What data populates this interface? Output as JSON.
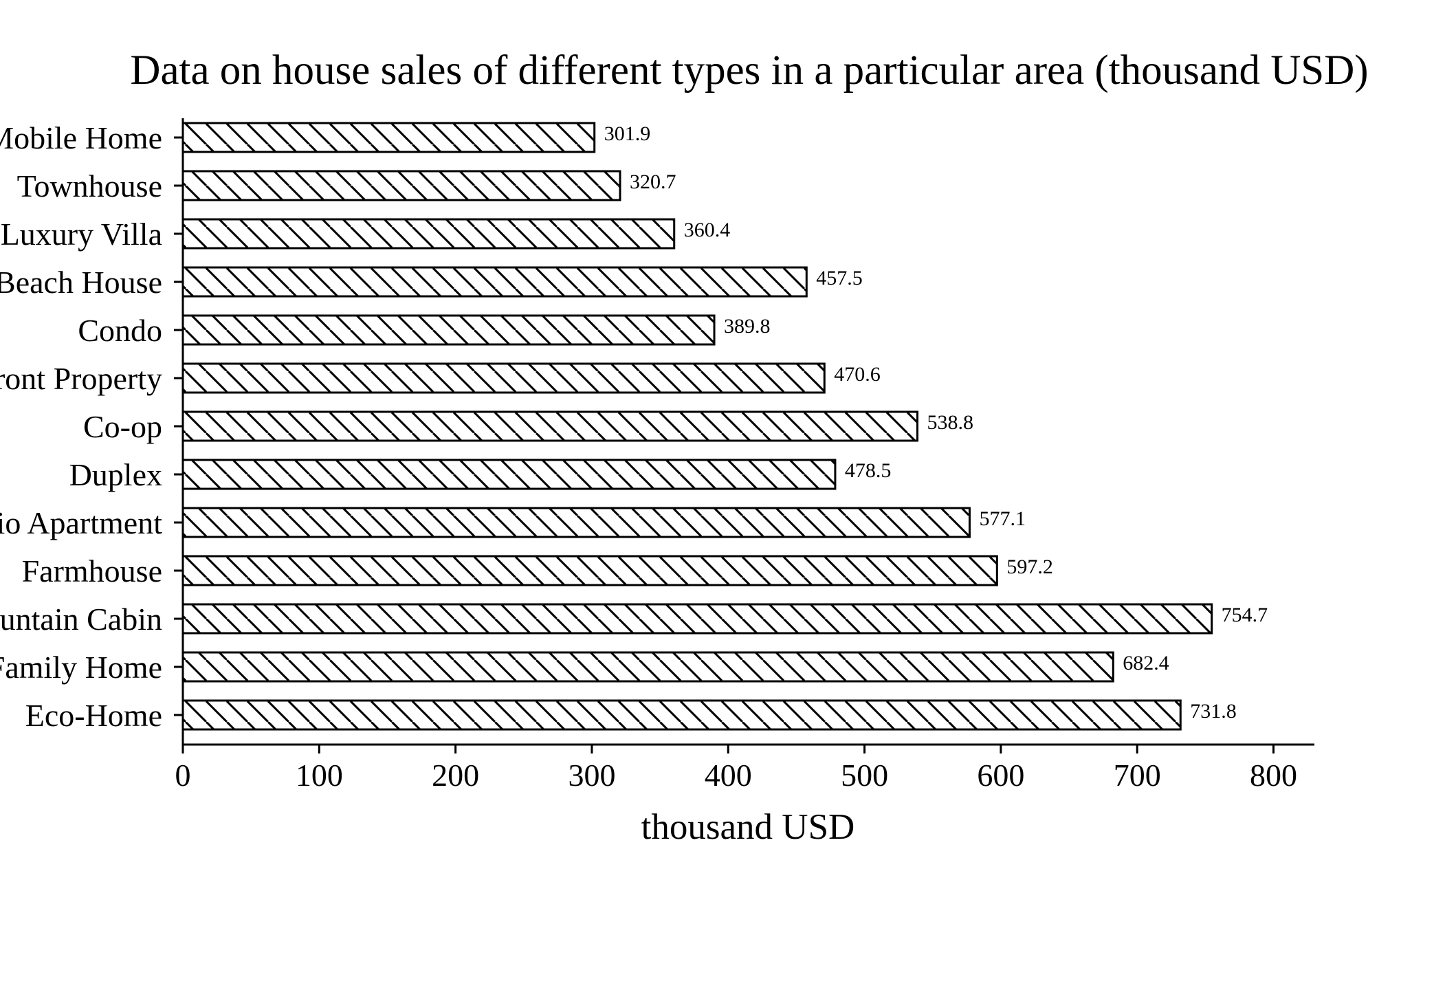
{
  "chart_data": {
    "type": "bar",
    "orientation": "horizontal",
    "title": "Data on house sales of different types in a particular area (thousand USD)",
    "xlabel": "thousand USD",
    "ylabel": "",
    "xlim": [
      0,
      830
    ],
    "xticks": [
      0,
      100,
      200,
      300,
      400,
      500,
      600,
      700,
      800
    ],
    "categories": [
      "Mobile Home",
      "Townhouse",
      "Luxury Villa",
      "Beach House",
      "Condo",
      "Waterfront Property",
      "Co-op",
      "Duplex",
      "Studio Apartment",
      "Farmhouse",
      "Mountain Cabin",
      "Single Family Home",
      "Eco-Home"
    ],
    "values": [
      301.9,
      320.7,
      360.4,
      457.5,
      389.8,
      470.6,
      538.8,
      478.5,
      577.1,
      597.2,
      754.7,
      682.4,
      731.8
    ],
    "bar_fill": "#ffffff",
    "bar_edge": "#000000",
    "hatch": "diagonal \\\\",
    "grid": false,
    "legend": "none"
  }
}
